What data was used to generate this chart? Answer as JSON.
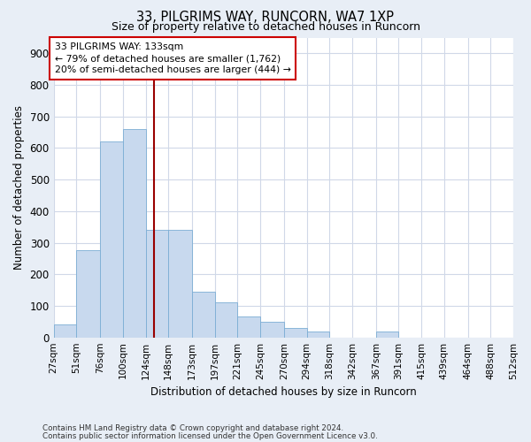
{
  "title": "33, PILGRIMS WAY, RUNCORN, WA7 1XP",
  "subtitle": "Size of property relative to detached houses in Runcorn",
  "xlabel": "Distribution of detached houses by size in Runcorn",
  "ylabel": "Number of detached properties",
  "bar_color": "#c8d9ee",
  "bar_edge_color": "#7badd4",
  "bins": [
    27,
    51,
    76,
    100,
    124,
    148,
    173,
    197,
    221,
    245,
    270,
    294,
    318,
    342,
    367,
    391,
    415,
    439,
    464,
    488,
    512
  ],
  "counts": [
    40,
    275,
    620,
    660,
    340,
    340,
    145,
    110,
    65,
    50,
    30,
    20,
    0,
    0,
    20,
    0,
    0,
    0,
    0,
    0
  ],
  "property_size": 133,
  "annotation_line1": "33 PILGRIMS WAY: 133sqm",
  "annotation_line2": "← 79% of detached houses are smaller (1,762)",
  "annotation_line3": "20% of semi-detached houses are larger (444) →",
  "annotation_box_edge": "#cc0000",
  "vline_color": "#990000",
  "vline_x": 133,
  "footnote1": "Contains HM Land Registry data © Crown copyright and database right 2024.",
  "footnote2": "Contains public sector information licensed under the Open Government Licence v3.0.",
  "ylim_max": 950,
  "yticks": [
    0,
    100,
    200,
    300,
    400,
    500,
    600,
    700,
    800,
    900
  ],
  "page_background": "#e8eef6",
  "plot_background": "#ffffff",
  "grid_color": "#d0d8e8"
}
